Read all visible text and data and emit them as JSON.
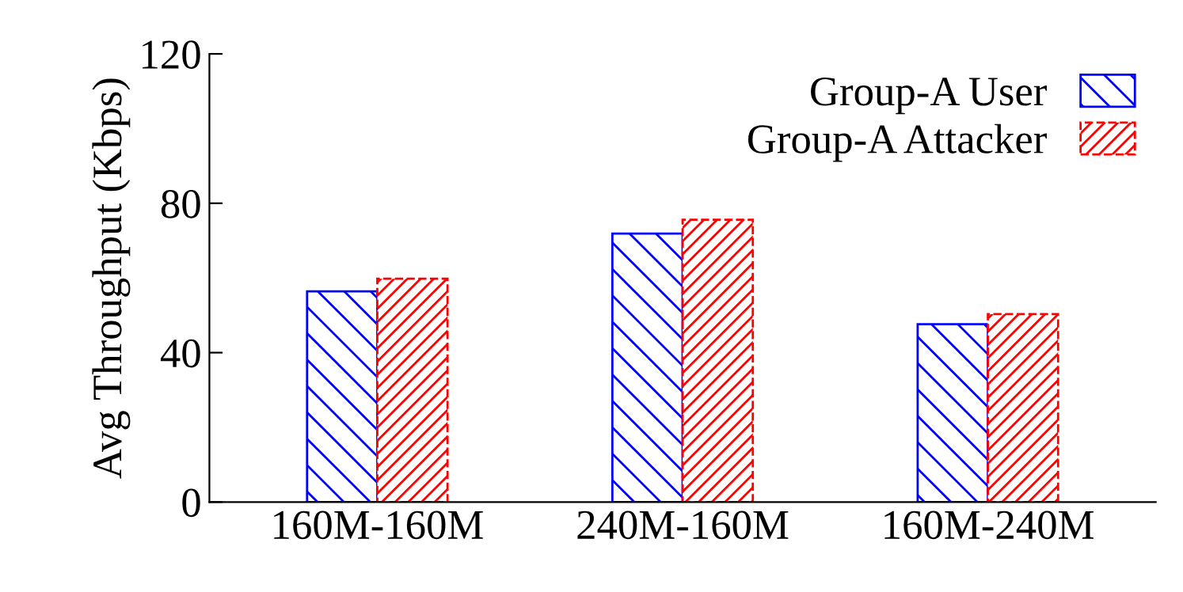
{
  "chart_data": {
    "type": "bar",
    "ylabel": "Avg Throughput (Kbps)",
    "categories": [
      "160M-160M",
      "240M-160M",
      "160M-240M"
    ],
    "series": [
      {
        "name": "Group-A User",
        "color": "#0000ff",
        "values": [
          56.4,
          71.9,
          47.6
        ]
      },
      {
        "name": "Group-A Attacker",
        "color": "#ff0000",
        "values": [
          59.8,
          75.6,
          50.3
        ]
      }
    ],
    "ylim": [
      0,
      120
    ],
    "yticks": [
      0,
      40,
      80,
      120
    ],
    "grid": false,
    "legend": "top right"
  }
}
